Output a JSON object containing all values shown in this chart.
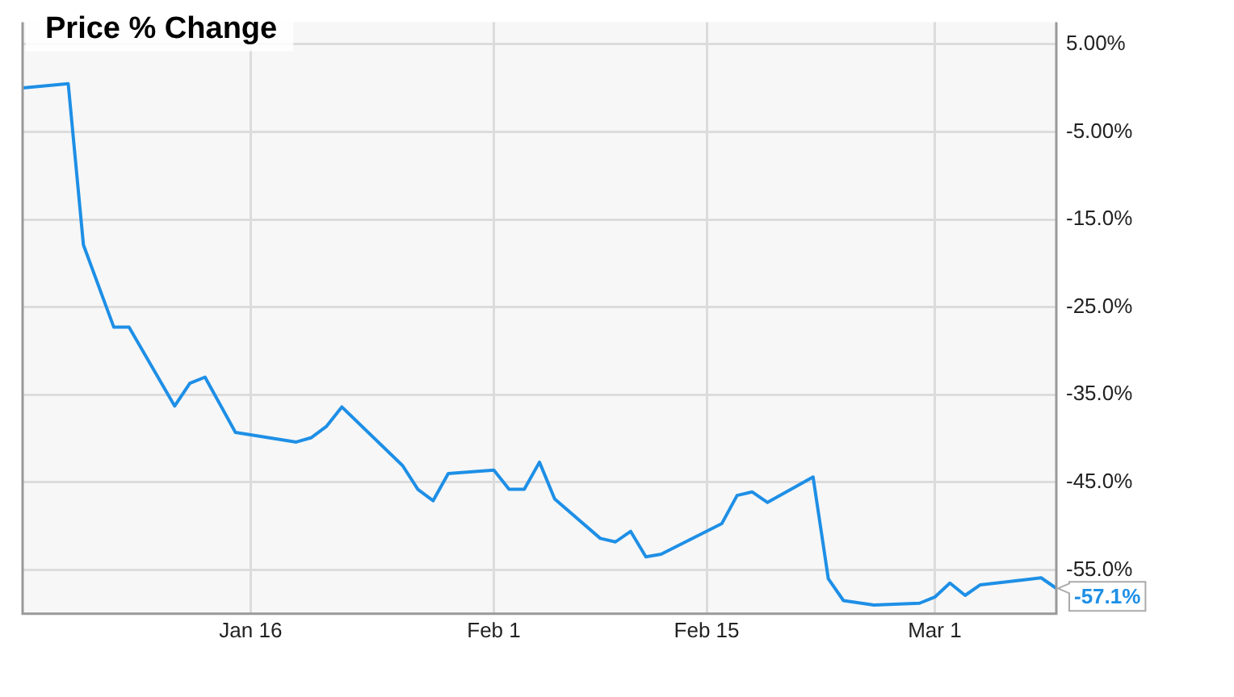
{
  "chart_data": {
    "type": "line",
    "title": "Price % Change",
    "x": [
      "--01-01",
      "--01-04",
      "--01-05",
      "--01-07",
      "--01-08",
      "--01-11",
      "--01-12",
      "--01-13",
      "--01-15",
      "--01-19",
      "--01-20",
      "--01-21",
      "--01-22",
      "--01-26",
      "--01-27",
      "--01-28",
      "--01-29",
      "--02-01",
      "--02-02",
      "--02-03",
      "--02-04",
      "--02-05",
      "--02-08",
      "--02-09",
      "--02-10",
      "--02-11",
      "--02-12",
      "--02-16",
      "--02-17",
      "--02-18",
      "--02-19",
      "--02-22",
      "--02-23",
      "--02-24",
      "--02-26",
      "--02-29",
      "--03-01",
      "--03-02",
      "--03-03",
      "--03-04",
      "--03-07",
      "--03-08",
      "--03-09"
    ],
    "series": [
      {
        "color": "#1e8fe6",
        "values": [
          0.0,
          0.5,
          -17.9,
          -27.3,
          -27.3,
          -36.3,
          -33.7,
          -33.0,
          -39.3,
          -40.4,
          -39.9,
          -38.6,
          -36.4,
          -43.1,
          -45.8,
          -47.1,
          -44.0,
          -43.6,
          -45.8,
          -45.8,
          -42.7,
          -46.9,
          -51.4,
          -51.8,
          -50.6,
          -53.5,
          -53.2,
          -49.7,
          -46.5,
          -46.1,
          -47.3,
          -44.4,
          -56.0,
          -58.5,
          -59.0,
          -58.8,
          -58.1,
          -56.5,
          -57.9,
          -56.7,
          -56.1,
          -55.9,
          -57.1
        ]
      }
    ],
    "xlim": [
      "--01-01",
      "--03-09"
    ],
    "xticks": [
      {
        "value": "--01-16",
        "label": "Jan 16"
      },
      {
        "value": "--02-01",
        "label": "Feb 1"
      },
      {
        "value": "--02-15",
        "label": "Feb 15"
      },
      {
        "value": "--03-01",
        "label": "Mar 1"
      }
    ],
    "ylim": [
      -60,
      7.5
    ],
    "yticks": [
      {
        "value": 5,
        "label": "5.00%"
      },
      {
        "value": -5,
        "label": "-5.00%"
      },
      {
        "value": -15,
        "label": "-15.0%"
      },
      {
        "value": -25,
        "label": "-25.0%"
      },
      {
        "value": -35,
        "label": "-35.0%"
      },
      {
        "value": -45,
        "label": "-45.0%"
      },
      {
        "value": -55,
        "label": "-55.0%"
      }
    ],
    "annotations": [
      {
        "text": "-57.1%",
        "x": "--03-09",
        "y": -57.1
      }
    ],
    "grid": true,
    "legend": false,
    "marker": "none",
    "line_style": "solid"
  }
}
